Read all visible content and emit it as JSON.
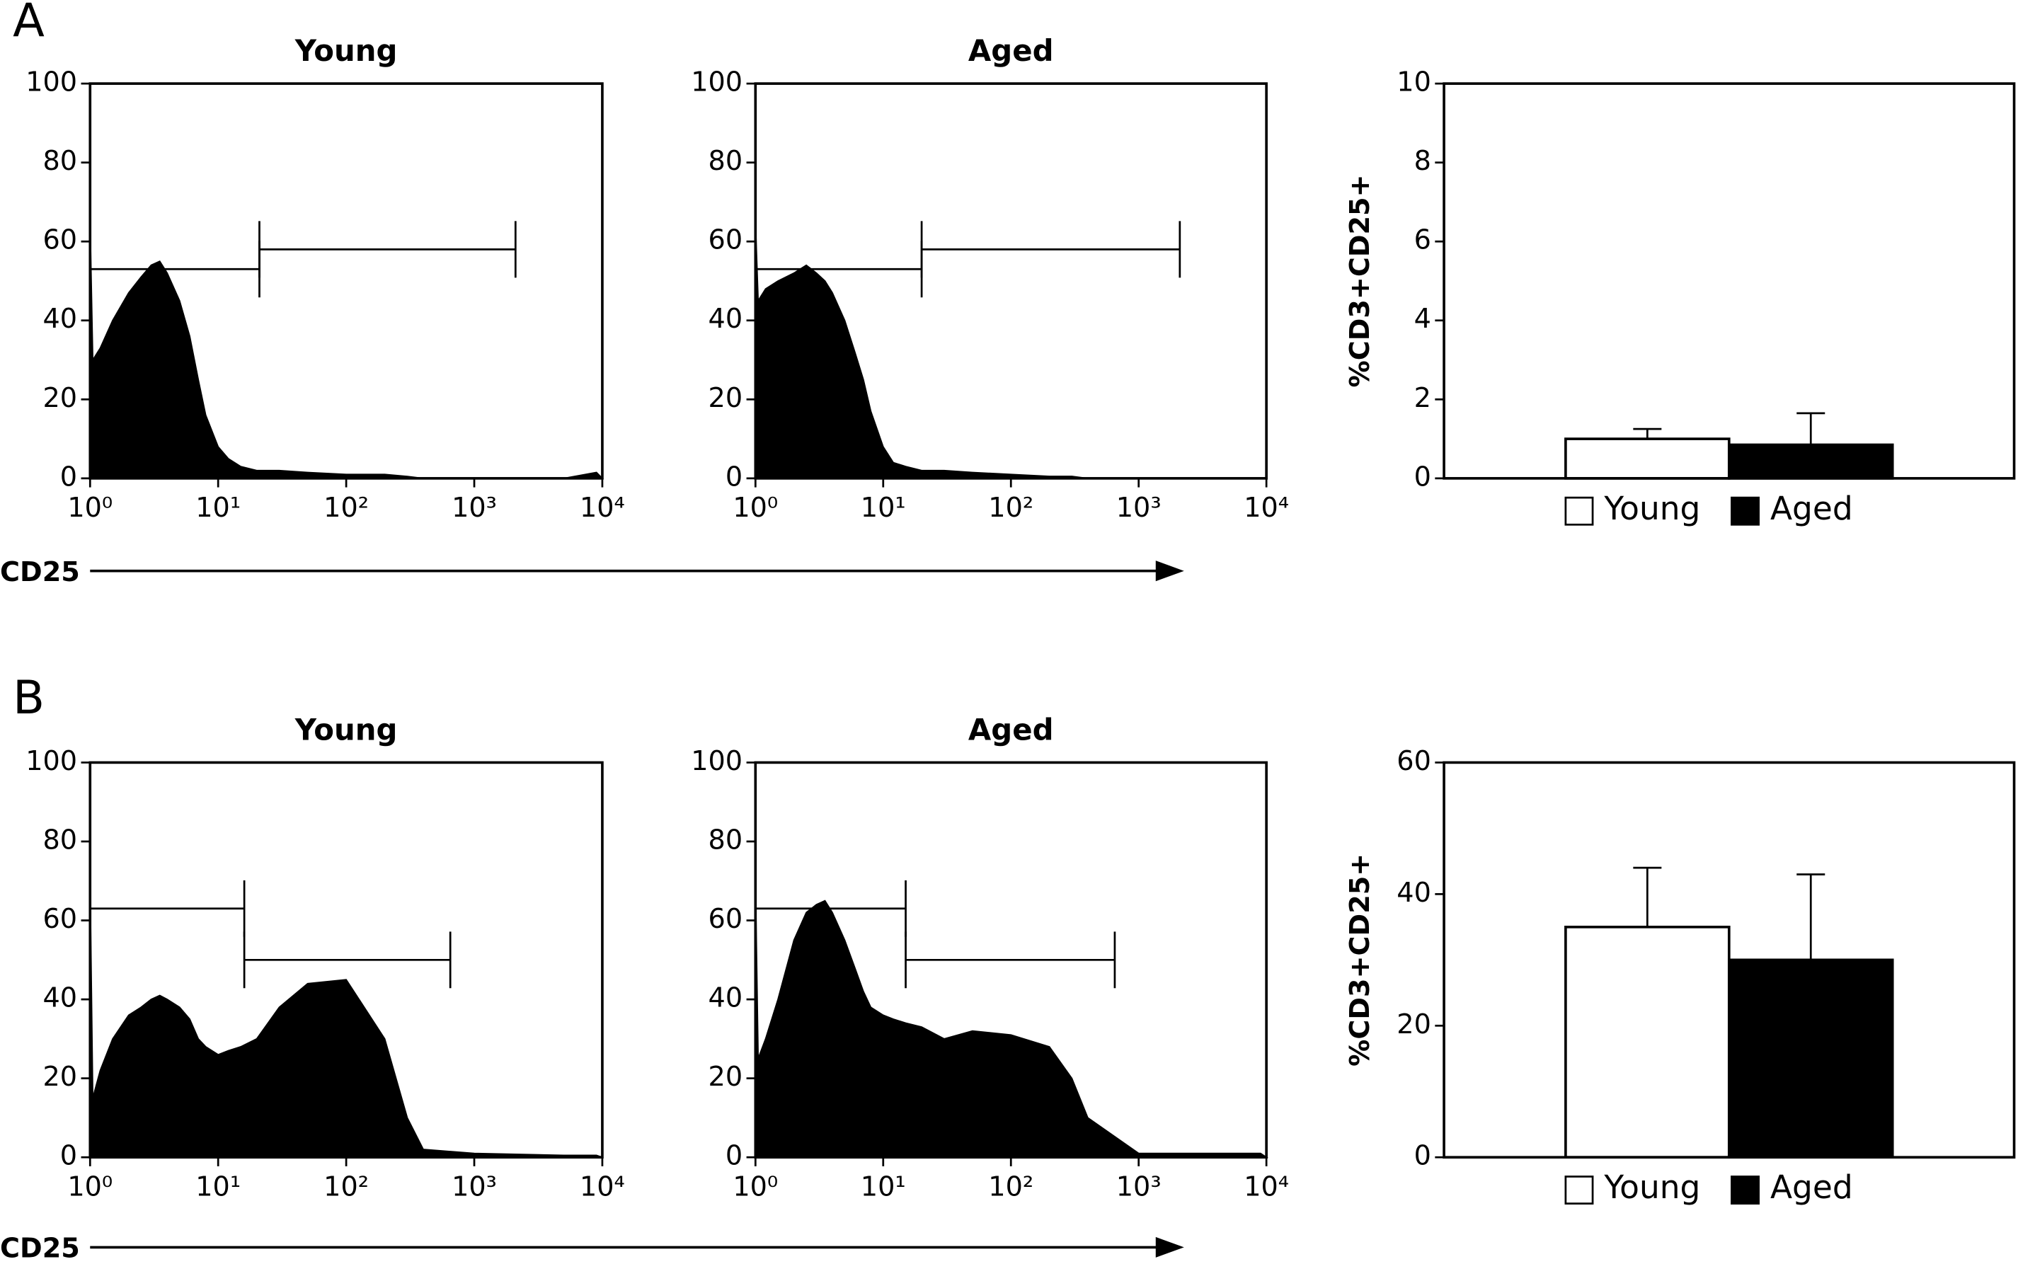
{
  "panels": [
    {
      "label": "A",
      "axis_label": "CD25"
    },
    {
      "label": "B",
      "axis_label": "CD25"
    }
  ],
  "chart_data": [
    {
      "type": "area",
      "title": "Young",
      "color": "#000000",
      "xscale": "log",
      "x": [
        1,
        1.05,
        1.2,
        1.5,
        2,
        2.5,
        3,
        3.5,
        4,
        5,
        6,
        7,
        8,
        10,
        12,
        15,
        20,
        30,
        50,
        100,
        200,
        300,
        400,
        1000,
        5000,
        9000,
        10000
      ],
      "values": [
        65,
        30,
        33,
        40,
        47,
        51,
        54,
        55,
        52,
        45,
        36,
        25,
        16,
        8,
        5,
        3,
        2,
        2,
        1.5,
        1,
        1,
        0.5,
        0,
        0,
        0,
        1.5,
        0
      ],
      "xlim": [
        1,
        10000
      ],
      "xticks": [
        {
          "value": 1,
          "label": "10⁰"
        },
        {
          "value": 10,
          "label": "10¹"
        },
        {
          "value": 100,
          "label": "10²"
        },
        {
          "value": 1000,
          "label": "10³"
        },
        {
          "value": 10000,
          "label": "10⁴"
        }
      ],
      "ylim": [
        0,
        100
      ],
      "yticks": [
        0,
        20,
        40,
        60,
        80,
        100
      ],
      "gates": [
        {
          "x": [
            1,
            21
          ],
          "y": 53
        },
        {
          "x": [
            21,
            2100
          ],
          "y": 58
        }
      ]
    },
    {
      "type": "area",
      "title": "Aged",
      "color": "#000000",
      "xscale": "log",
      "x": [
        1,
        1.05,
        1.2,
        1.5,
        2,
        2.5,
        3,
        3.5,
        4,
        5,
        6,
        7,
        8,
        10,
        12,
        15,
        20,
        30,
        50,
        100,
        200,
        300,
        400,
        1000,
        5000,
        9000,
        10000
      ],
      "values": [
        65,
        45,
        48,
        50,
        52,
        54,
        52,
        50,
        47,
        40,
        32,
        25,
        17,
        8,
        4,
        3,
        2,
        2,
        1.5,
        1,
        0.5,
        0.5,
        0,
        0,
        0,
        0,
        0
      ],
      "xlim": [
        1,
        10000
      ],
      "xticks": [
        {
          "value": 1,
          "label": "10⁰"
        },
        {
          "value": 10,
          "label": "10¹"
        },
        {
          "value": 100,
          "label": "10²"
        },
        {
          "value": 1000,
          "label": "10³"
        },
        {
          "value": 10000,
          "label": "10⁴"
        }
      ],
      "ylim": [
        0,
        100
      ],
      "yticks": [
        0,
        20,
        40,
        60,
        80,
        100
      ],
      "gates": [
        {
          "x": [
            1,
            20
          ],
          "y": 53
        },
        {
          "x": [
            20,
            2100
          ],
          "y": 58
        }
      ]
    },
    {
      "type": "bar",
      "ylabel": "%CD3+CD25+",
      "ylim": [
        0,
        10
      ],
      "yticks": [
        0,
        2,
        4,
        6,
        8,
        10
      ],
      "legend": "bottom",
      "series": [
        {
          "name": "Young",
          "color": "#ffffff",
          "values": [
            1.0
          ],
          "errors": [
            0.25
          ]
        },
        {
          "name": "Aged",
          "color": "#000000",
          "values": [
            0.85
          ],
          "errors": [
            0.8
          ]
        }
      ]
    },
    {
      "type": "area",
      "title": "Young",
      "color": "#000000",
      "xscale": "log",
      "x": [
        1,
        1.05,
        1.2,
        1.5,
        2,
        2.5,
        3,
        3.5,
        4,
        5,
        6,
        7,
        8,
        10,
        12,
        15,
        20,
        30,
        50,
        100,
        200,
        300,
        400,
        1000,
        5000,
        9000,
        10000
      ],
      "values": [
        70,
        15,
        22,
        30,
        36,
        38,
        40,
        41,
        40,
        38,
        35,
        30,
        28,
        26,
        27,
        28,
        30,
        38,
        44,
        45,
        30,
        10,
        2,
        1,
        0.5,
        0.5,
        0
      ],
      "xlim": [
        1,
        10000
      ],
      "xticks": [
        {
          "value": 1,
          "label": "10⁰"
        },
        {
          "value": 10,
          "label": "10¹"
        },
        {
          "value": 100,
          "label": "10²"
        },
        {
          "value": 1000,
          "label": "10³"
        },
        {
          "value": 10000,
          "label": "10⁴"
        }
      ],
      "ylim": [
        0,
        100
      ],
      "yticks": [
        0,
        20,
        40,
        60,
        80,
        100
      ],
      "gates": [
        {
          "x": [
            1,
            16
          ],
          "y": 63
        },
        {
          "x": [
            16,
            650
          ],
          "y": 50
        }
      ]
    },
    {
      "type": "area",
      "title": "Aged",
      "color": "#000000",
      "xscale": "log",
      "x": [
        1,
        1.05,
        1.2,
        1.5,
        2,
        2.5,
        3,
        3.5,
        4,
        5,
        6,
        7,
        8,
        10,
        12,
        15,
        20,
        30,
        50,
        100,
        200,
        300,
        400,
        1000,
        5000,
        9000,
        10000
      ],
      "values": [
        70,
        25,
        30,
        40,
        55,
        62,
        64,
        65,
        62,
        55,
        48,
        42,
        38,
        36,
        35,
        34,
        33,
        30,
        32,
        31,
        28,
        20,
        10,
        1,
        1,
        1,
        0
      ],
      "xlim": [
        1,
        10000
      ],
      "xticks": [
        {
          "value": 1,
          "label": "10⁰"
        },
        {
          "value": 10,
          "label": "10¹"
        },
        {
          "value": 100,
          "label": "10²"
        },
        {
          "value": 1000,
          "label": "10³"
        },
        {
          "value": 10000,
          "label": "10⁴"
        }
      ],
      "ylim": [
        0,
        100
      ],
      "yticks": [
        0,
        20,
        40,
        60,
        80,
        100
      ],
      "gates": [
        {
          "x": [
            1,
            15
          ],
          "y": 63
        },
        {
          "x": [
            15,
            650
          ],
          "y": 50
        }
      ]
    },
    {
      "type": "bar",
      "ylabel": "%CD3+CD25+",
      "ylim": [
        0,
        60
      ],
      "yticks": [
        0,
        20,
        40,
        60
      ],
      "legend": "bottom",
      "series": [
        {
          "name": "Young",
          "color": "#ffffff",
          "values": [
            35
          ],
          "errors": [
            9
          ]
        },
        {
          "name": "Aged",
          "color": "#000000",
          "values": [
            30
          ],
          "errors": [
            13
          ]
        }
      ]
    }
  ]
}
